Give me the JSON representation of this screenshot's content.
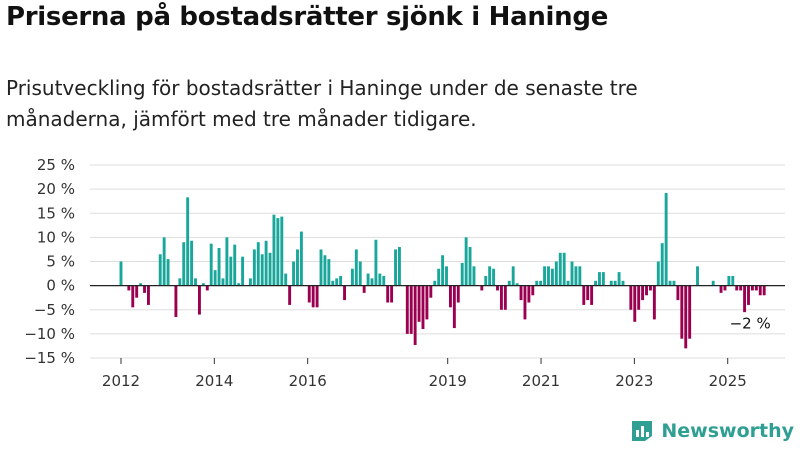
{
  "header": {
    "title": "Priserna på bostadsrätter sjönk i Haninge",
    "subtitle": "Prisutveckling för bostadsrätter i Haninge under de senaste tre månaderna, jämfört med tre månader tidigare."
  },
  "brand": {
    "name": "Newsworthy",
    "icon": "newsworthy-logo-icon"
  },
  "colors": {
    "positive": "#1aa79b",
    "negative": "#9b0050",
    "grid": "#dddddd",
    "zero": "#222222"
  },
  "chart_data": {
    "type": "bar",
    "x_start": "2012-01",
    "x_end": "2025-12",
    "ylim": [
      -15,
      25
    ],
    "yticks": [
      25,
      20,
      15,
      10,
      5,
      0,
      -5,
      -10,
      -15
    ],
    "ytick_labels": [
      "25 %",
      "20 %",
      "15 %",
      "10 %",
      "5 %",
      "0 %",
      "−5 %",
      "−10 %",
      "−15 %"
    ],
    "xticks": [
      {
        "label": "2012",
        "value": 2012.0
      },
      {
        "label": "2014",
        "value": 2014.0
      },
      {
        "label": "2016",
        "value": 2016.0
      },
      {
        "label": "2019",
        "value": 2019.0
      },
      {
        "label": "2021",
        "value": 2021.0
      },
      {
        "label": "2023",
        "value": 2023.0
      },
      {
        "label": "2025",
        "value": 2025.0
      }
    ],
    "grid": true,
    "annotation": {
      "label": "−2 %",
      "value": -2
    },
    "values": [
      5,
      0,
      -1,
      -4.5,
      -2.5,
      0.5,
      -1.5,
      -4,
      0,
      0,
      6.5,
      10,
      5.5,
      0,
      -6.5,
      1.5,
      9,
      18.3,
      9.3,
      1.5,
      -6,
      0.5,
      -1,
      8.7,
      3.2,
      7.8,
      1.5,
      10,
      6,
      8.5,
      0.5,
      6,
      0,
      1.5,
      7.5,
      9,
      6.5,
      9.3,
      6.8,
      14.7,
      14,
      14.3,
      2.5,
      -4,
      5,
      7.5,
      11.2,
      0,
      -3.5,
      -4.5,
      -4.5,
      7.5,
      6.3,
      5.5,
      1,
      1.5,
      2,
      -3,
      0,
      3.5,
      7.5,
      5,
      -1.5,
      2.5,
      1.5,
      9.5,
      2.5,
      2,
      -3.5,
      -3.5,
      7.5,
      8,
      0,
      -10,
      -10,
      -12.3,
      -7.5,
      -9,
      -7,
      -2.5,
      1,
      3.5,
      6.3,
      4,
      -4.5,
      -8.8,
      -3.5,
      4.7,
      10,
      8,
      4,
      0,
      -1,
      2,
      4,
      3.5,
      -1,
      -5,
      -5,
      1,
      4,
      0.5,
      -3,
      -7,
      -3.5,
      -2,
      1,
      1,
      4,
      4,
      3.5,
      5,
      6.8,
      6.8,
      1,
      5,
      4,
      4,
      -4,
      -3,
      -4,
      1,
      2.8,
      2.8,
      0,
      1,
      1,
      2.8,
      1,
      0,
      -5,
      -7.5,
      -5,
      -3,
      -2,
      -1,
      -7,
      5,
      8.8,
      19.2,
      1,
      1,
      -3,
      -11,
      -13,
      -11,
      0,
      4,
      0,
      0,
      0,
      1,
      0,
      -1.5,
      -1,
      2,
      2,
      -1,
      -1,
      -5.5,
      -4,
      -1,
      -1,
      -2,
      -2
    ]
  }
}
